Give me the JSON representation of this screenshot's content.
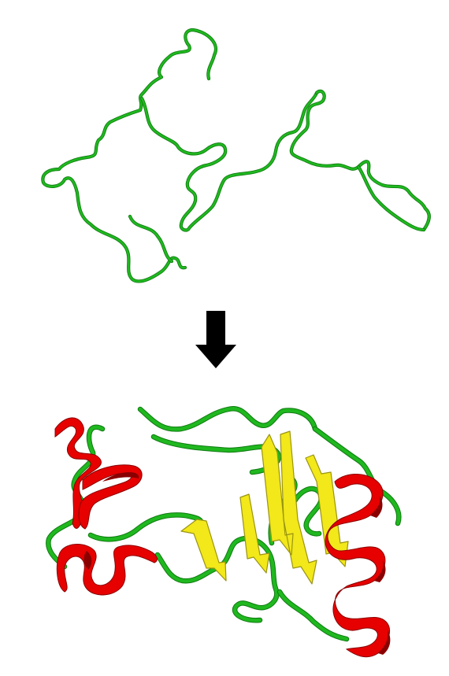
{
  "figure": {
    "top_panel": {
      "state": "unfolded-chain"
    },
    "transition": {
      "icon": "down-arrow-icon"
    },
    "bottom_panel": {
      "state": "folded-structure"
    }
  },
  "colors": {
    "coil": "#1fb81f",
    "coil_dark": "#0f7a10",
    "helix": "#e60000",
    "helix_dark": "#8a0000",
    "strand": "#f2e81a",
    "strand_dark": "#9a9410",
    "arrow": "#000000",
    "background": "#ffffff"
  }
}
